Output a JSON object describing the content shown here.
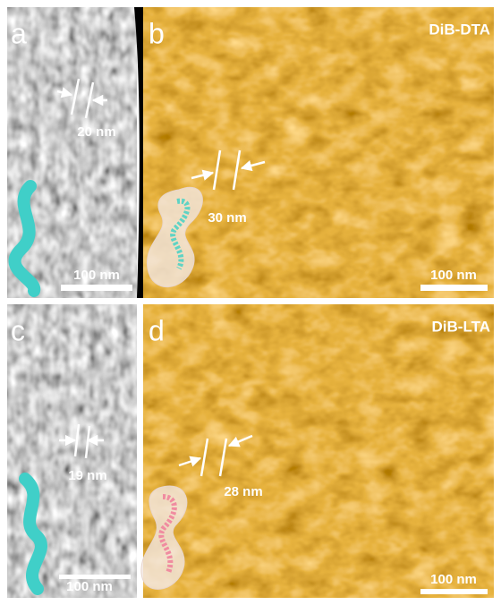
{
  "panels": [
    {
      "label": "a",
      "spacing": "20 nm",
      "scale_bar": "100 nm"
    },
    {
      "label": "b",
      "title": "DiB-DTA",
      "spacing": "30 nm",
      "scale_bar": "100 nm"
    },
    {
      "label": "c",
      "spacing": "19 nm",
      "scale_bar": "100 nm"
    },
    {
      "label": "d",
      "title": "DiB-LTA",
      "spacing": "28 nm",
      "scale_bar": "100 nm"
    }
  ]
}
